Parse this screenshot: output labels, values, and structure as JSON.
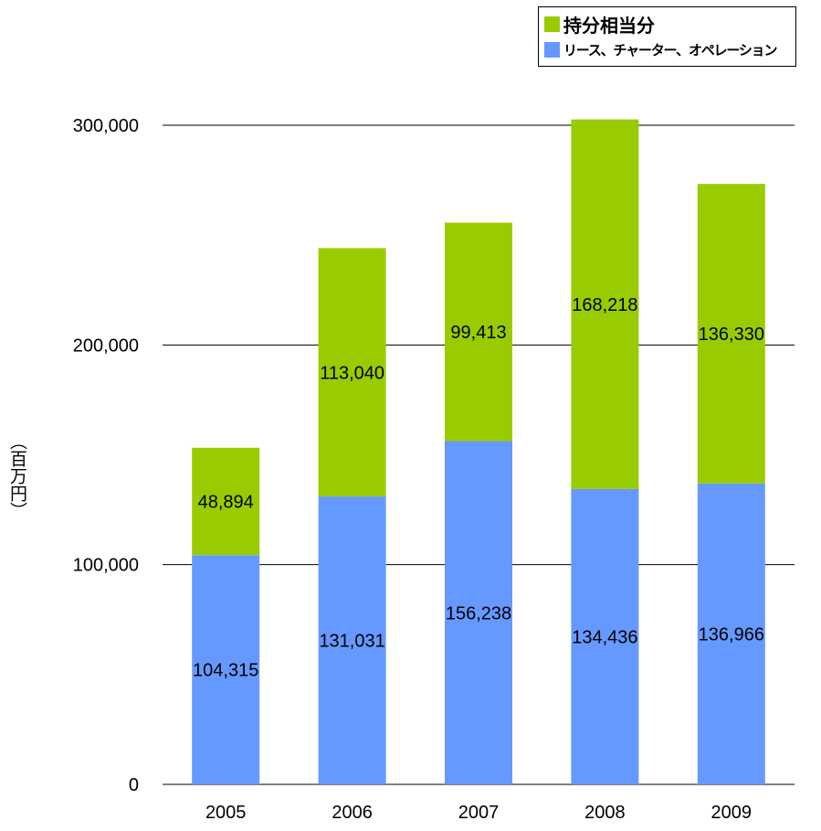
{
  "chart_data": {
    "type": "bar",
    "stacked": true,
    "categories": [
      "2005",
      "2006",
      "2007",
      "2008",
      "2009"
    ],
    "series": [
      {
        "name": "リース、チャーター、オペレーション",
        "color": "#6699ff",
        "values": [
          104315,
          131031,
          156238,
          134436,
          136966
        ],
        "labels": [
          "104,315",
          "131,031",
          "156,238",
          "134,436",
          "136,966"
        ]
      },
      {
        "name": "持分相当分",
        "color": "#99cc00",
        "values": [
          48894,
          113040,
          99413,
          168218,
          136330
        ],
        "labels": [
          "48,894",
          "113,040",
          "99,413",
          "168,218",
          "136,330"
        ]
      }
    ],
    "ylabel": "（百万円）",
    "ylim": [
      0,
      300000
    ],
    "yticks": [
      0,
      100000,
      200000,
      300000
    ],
    "ytick_labels": [
      "0",
      "100,000",
      "200,000",
      "300,000"
    ],
    "grid": true,
    "legend": {
      "position": "top-right",
      "items": [
        {
          "label": "持分相当分",
          "color": "#99cc00"
        },
        {
          "label": "リース、チャーター、オペレーション",
          "color": "#6699ff"
        }
      ]
    }
  }
}
